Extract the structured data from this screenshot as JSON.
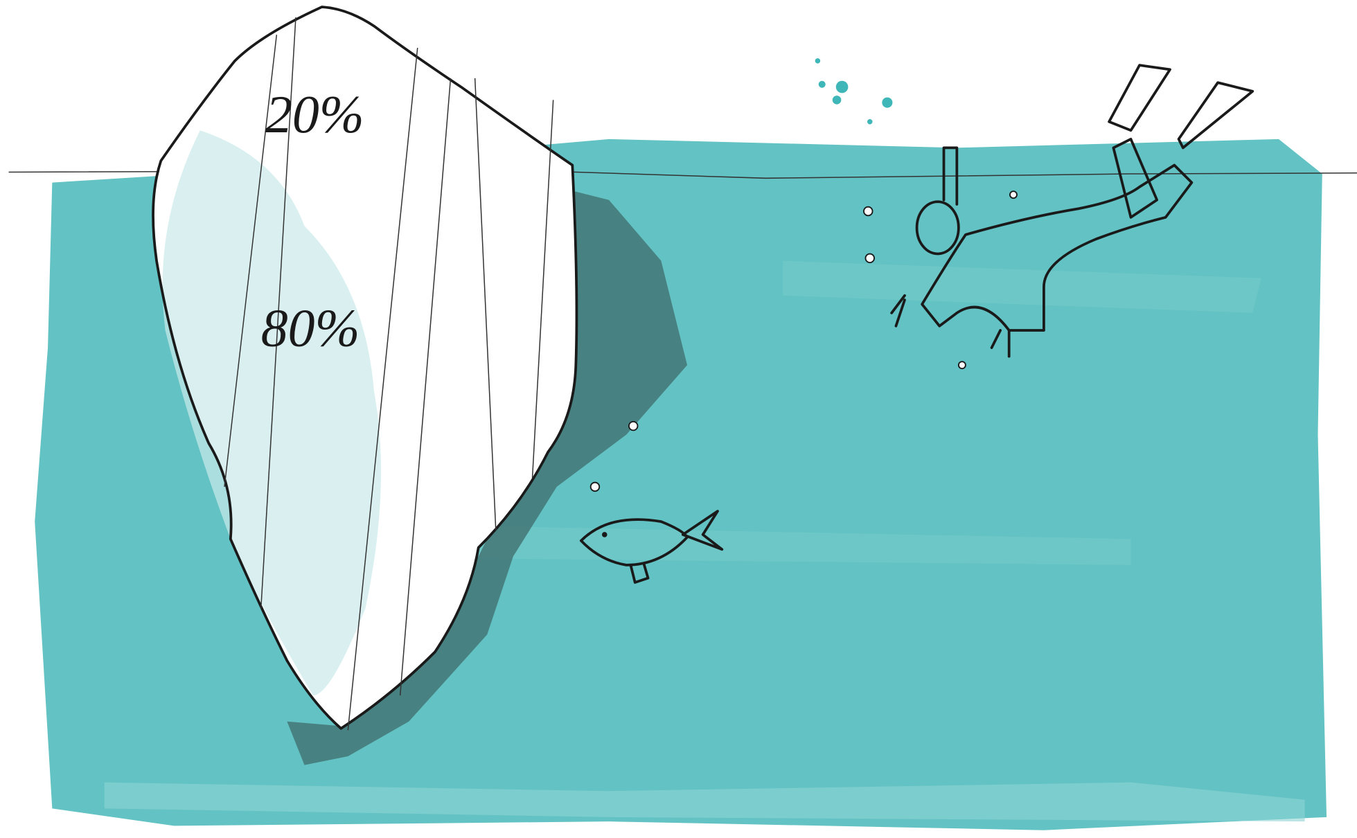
{
  "labels": {
    "above_water": "20%",
    "below_water": "80%"
  }
}
